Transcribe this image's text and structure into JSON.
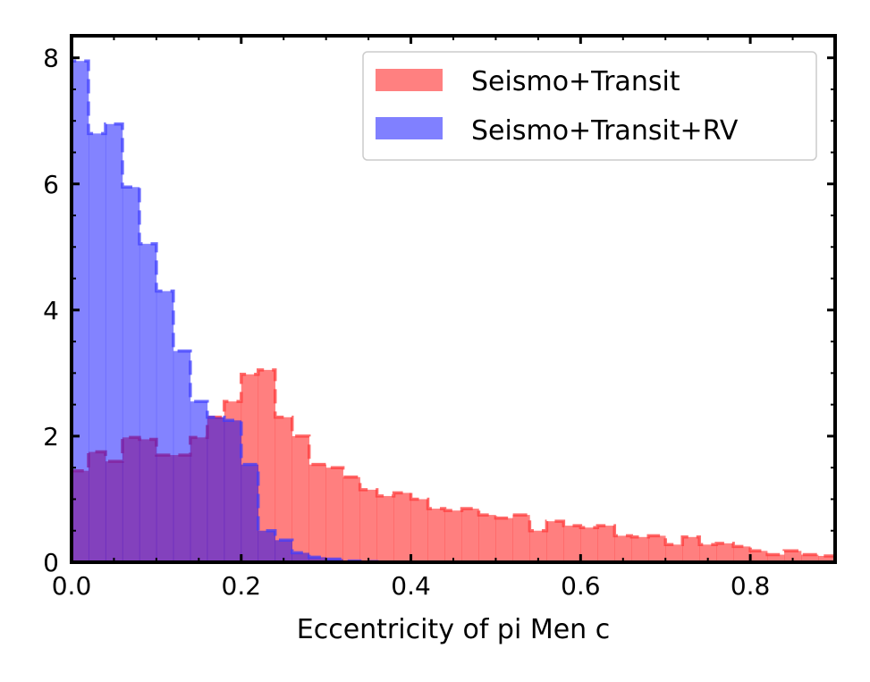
{
  "chart_data": {
    "type": "histogram",
    "xlabel": "Eccentricity of pi Men c",
    "ylabel": "",
    "xlim": [
      0,
      0.9
    ],
    "ylim": [
      0,
      8.35
    ],
    "x_ticks": [
      "0.0",
      "0.2",
      "0.4",
      "0.6",
      "0.8"
    ],
    "x_tick_values": [
      0,
      0.2,
      0.4,
      0.6,
      0.8
    ],
    "y_ticks": [
      "0",
      "2",
      "4",
      "6",
      "8"
    ],
    "y_tick_values": [
      0,
      2,
      4,
      6,
      8
    ],
    "ticks_direction": "in",
    "grid": false,
    "legend_position": "top-right",
    "series": [
      {
        "name": "Seismo+Transit",
        "fill": "#ff8080",
        "edge": "#ff3b3b",
        "bin_edges": [
          0.0,
          0.02,
          0.04,
          0.06,
          0.08,
          0.1,
          0.12,
          0.14,
          0.16,
          0.18,
          0.2,
          0.22,
          0.24,
          0.26,
          0.28,
          0.3,
          0.32,
          0.34,
          0.36,
          0.38,
          0.4,
          0.42,
          0.44,
          0.46,
          0.48,
          0.5,
          0.52,
          0.54,
          0.56,
          0.58,
          0.6,
          0.62,
          0.64,
          0.66,
          0.68,
          0.7,
          0.72,
          0.74,
          0.76,
          0.78,
          0.8,
          0.82,
          0.84,
          0.86,
          0.88,
          0.9
        ],
        "values": [
          1.45,
          1.75,
          1.6,
          1.98,
          1.95,
          1.7,
          1.7,
          1.98,
          2.3,
          2.55,
          2.98,
          3.05,
          2.3,
          2.0,
          1.55,
          1.5,
          1.35,
          1.15,
          1.05,
          1.1,
          1.0,
          0.85,
          0.82,
          0.85,
          0.75,
          0.7,
          0.75,
          0.5,
          0.65,
          0.58,
          0.55,
          0.58,
          0.42,
          0.4,
          0.42,
          0.28,
          0.4,
          0.28,
          0.3,
          0.25,
          0.18,
          0.12,
          0.18,
          0.12,
          0.1
        ]
      },
      {
        "name": "Seismo+Transit+RV",
        "fill": "#8080ff",
        "edge": "#3b3bff",
        "bin_edges": [
          0.0,
          0.02,
          0.04,
          0.06,
          0.08,
          0.1,
          0.12,
          0.14,
          0.16,
          0.18,
          0.2,
          0.22,
          0.24,
          0.26,
          0.28,
          0.3,
          0.32,
          0.34,
          0.36,
          0.38
        ],
        "values": [
          7.95,
          6.8,
          6.95,
          5.95,
          5.05,
          4.3,
          3.35,
          2.55,
          2.3,
          2.25,
          1.55,
          0.5,
          0.35,
          0.15,
          0.08,
          0.05,
          0.02,
          0.01,
          0.0
        ]
      }
    ]
  }
}
